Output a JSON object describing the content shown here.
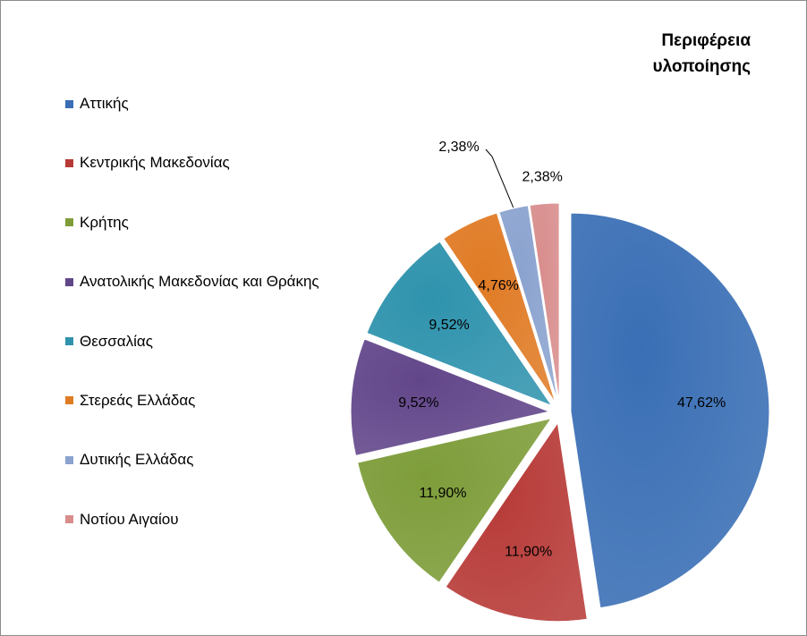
{
  "chart_data": {
    "type": "pie",
    "title": [
      "Περιφέρεια",
      "υλοποίησης"
    ],
    "legend_position": "left",
    "categories": [
      "Αττικής",
      "Κεντρικής Μακεδονίας",
      "Κρήτης",
      "Ανατολικής Μακεδονίας και Θράκης",
      "Θεσσαλίας",
      "Στερεάς Ελλάδας",
      "Δυτικής Ελλάδας",
      "Νοτίου Αιγαίου"
    ],
    "values": [
      47.62,
      11.9,
      11.9,
      9.52,
      9.52,
      4.76,
      2.38,
      2.38
    ],
    "data_labels": [
      "47,62%",
      "11,90%",
      "11,90%",
      "9,52%",
      "9,52%",
      "4,76%",
      "2,38%",
      "2,38%"
    ],
    "colors": [
      "#3a6fb5",
      "#b73a37",
      "#7e9d3a",
      "#62468a",
      "#2f93ad",
      "#e07b25",
      "#8aa3cf",
      "#d88d8c"
    ]
  }
}
